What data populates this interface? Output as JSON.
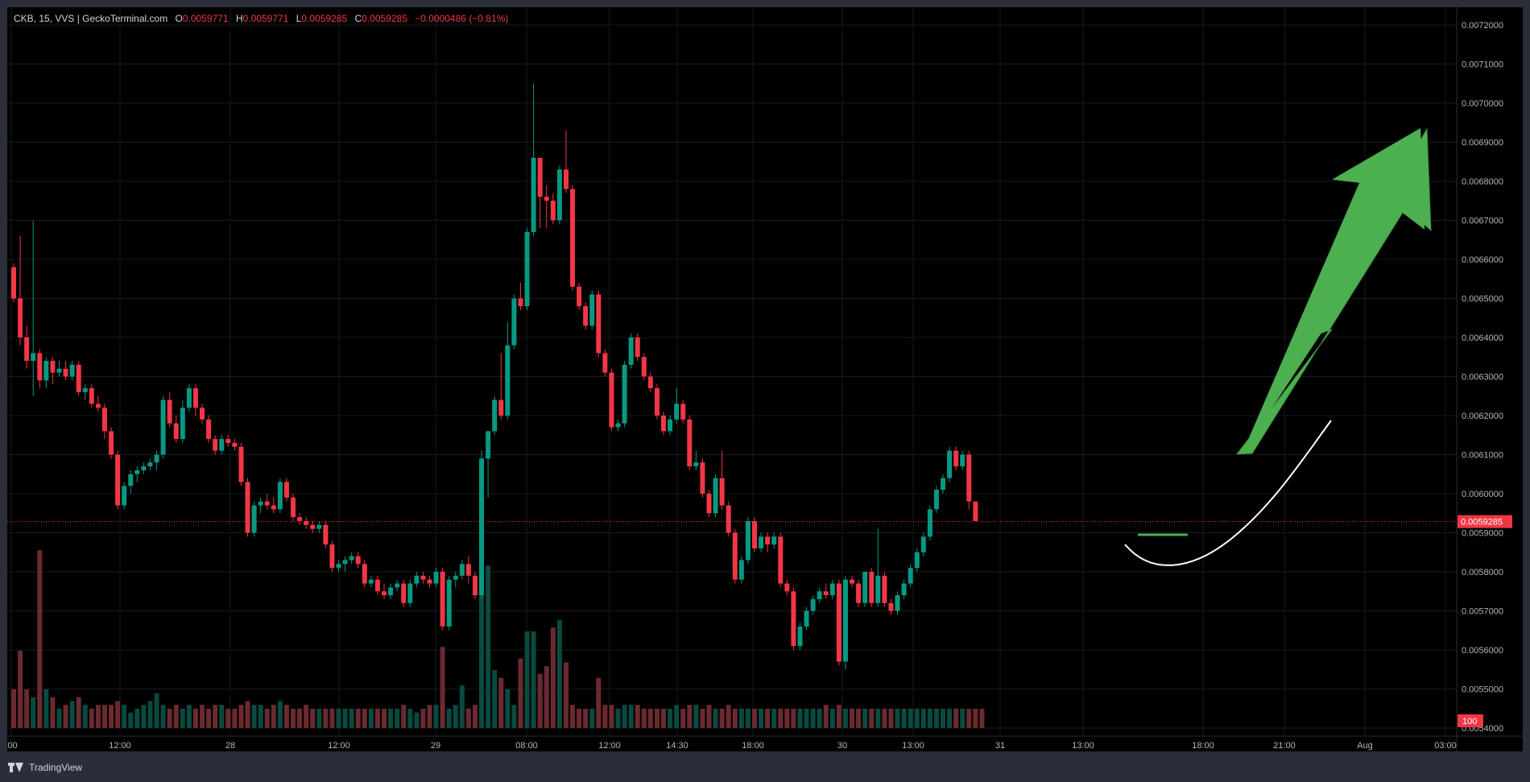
{
  "header": {
    "symbol": "CKB, 15, VVS | GeckoTerminal.com",
    "open_label": "O",
    "open": "0.0059771",
    "high_label": "H",
    "high": "0.0059771",
    "low_label": "L",
    "low": "0.0059285",
    "close_label": "C",
    "close": "0.0059285",
    "change": "−0.0000486 (−0.81%)"
  },
  "footer": {
    "brand": "TradingView"
  },
  "colors": {
    "up": "#089981",
    "down": "#f23645",
    "background": "#000000",
    "arrow": "#4caf50",
    "text": "#b2b5be"
  },
  "chart_data": {
    "type": "candlestick",
    "x_tick_labels": [
      ":00",
      "12:00",
      "28",
      "12:00",
      "29",
      "08:00",
      "12:00",
      "14:30",
      "18:00",
      "30",
      "13:00",
      "31",
      "13:00",
      "18:00",
      "21:00",
      "Aug",
      "03:00"
    ],
    "y_tick_labels": [
      "0.0072000",
      "0.0071000",
      "0.0070000",
      "0.0069000",
      "0.0068000",
      "0.0067000",
      "0.0066000",
      "0.0065000",
      "0.0064000",
      "0.0063000",
      "0.0062000",
      "0.0061000",
      "0.0060000",
      "0.0059000",
      "0.0058000",
      "0.0057000",
      "0.0056000",
      "0.0055000",
      "0.0054000"
    ],
    "ylim": [
      0.0054,
      0.0072
    ],
    "last_price": 0.0059285,
    "last_price_label": "0.0059285",
    "volume_badge": "100",
    "candles": [
      [
        0.00658,
        0.00659,
        0.00649,
        0.0065
      ],
      [
        0.0065,
        0.00666,
        0.00638,
        0.0064
      ],
      [
        0.0064,
        0.00643,
        0.00632,
        0.00634
      ],
      [
        0.00634,
        0.0067,
        0.00625,
        0.00636
      ],
      [
        0.00636,
        0.00637,
        0.00627,
        0.00629
      ],
      [
        0.00629,
        0.00635,
        0.00627,
        0.00634
      ],
      [
        0.00634,
        0.00635,
        0.00628,
        0.00631
      ],
      [
        0.00631,
        0.00634,
        0.0063,
        0.00632
      ],
      [
        0.00632,
        0.00634,
        0.00629,
        0.0063
      ],
      [
        0.0063,
        0.00634,
        0.00629,
        0.00633
      ],
      [
        0.00633,
        0.00634,
        0.00625,
        0.00626
      ],
      [
        0.00626,
        0.00628,
        0.00624,
        0.00627
      ],
      [
        0.00627,
        0.00628,
        0.00622,
        0.00623
      ],
      [
        0.00623,
        0.00625,
        0.00621,
        0.00622
      ],
      [
        0.00622,
        0.00623,
        0.00614,
        0.00616
      ],
      [
        0.00616,
        0.00617,
        0.00609,
        0.0061
      ],
      [
        0.0061,
        0.00611,
        0.00596,
        0.00597
      ],
      [
        0.00597,
        0.00603,
        0.00596,
        0.00602
      ],
      [
        0.00602,
        0.00606,
        0.006,
        0.00605
      ],
      [
        0.00605,
        0.00607,
        0.00603,
        0.00606
      ],
      [
        0.00606,
        0.00608,
        0.00605,
        0.00607
      ],
      [
        0.00607,
        0.00609,
        0.00606,
        0.00608
      ],
      [
        0.00608,
        0.00611,
        0.00606,
        0.0061
      ],
      [
        0.0061,
        0.00625,
        0.00609,
        0.00624
      ],
      [
        0.00624,
        0.00626,
        0.00617,
        0.00618
      ],
      [
        0.00618,
        0.0062,
        0.00613,
        0.00614
      ],
      [
        0.00614,
        0.00624,
        0.00613,
        0.00622
      ],
      [
        0.00622,
        0.00628,
        0.00621,
        0.00627
      ],
      [
        0.00627,
        0.00628,
        0.0062,
        0.00622
      ],
      [
        0.00622,
        0.00623,
        0.00618,
        0.00619
      ],
      [
        0.00619,
        0.0062,
        0.00613,
        0.00614
      ],
      [
        0.00614,
        0.00615,
        0.0061,
        0.00611
      ],
      [
        0.00611,
        0.00615,
        0.0061,
        0.00614
      ],
      [
        0.00614,
        0.00615,
        0.00612,
        0.00613
      ],
      [
        0.00613,
        0.00614,
        0.00611,
        0.00612
      ],
      [
        0.00612,
        0.00613,
        0.00602,
        0.00603
      ],
      [
        0.00603,
        0.00604,
        0.00589,
        0.0059
      ],
      [
        0.0059,
        0.00598,
        0.00589,
        0.00597
      ],
      [
        0.00597,
        0.00599,
        0.00595,
        0.00598
      ],
      [
        0.00598,
        0.006,
        0.00596,
        0.00597
      ],
      [
        0.00597,
        0.00599,
        0.00595,
        0.00596
      ],
      [
        0.00596,
        0.00604,
        0.00595,
        0.00603
      ],
      [
        0.00603,
        0.00604,
        0.00598,
        0.00599
      ],
      [
        0.00599,
        0.006,
        0.00593,
        0.00594
      ],
      [
        0.00594,
        0.00595,
        0.00592,
        0.00593
      ],
      [
        0.00593,
        0.00594,
        0.00591,
        0.00592
      ],
      [
        0.00592,
        0.00593,
        0.0059,
        0.00591
      ],
      [
        0.00591,
        0.00593,
        0.0059,
        0.00592
      ],
      [
        0.00592,
        0.00593,
        0.00586,
        0.00587
      ],
      [
        0.00587,
        0.00588,
        0.0058,
        0.00581
      ],
      [
        0.00581,
        0.00583,
        0.0058,
        0.00582
      ],
      [
        0.00582,
        0.00584,
        0.0058,
        0.00583
      ],
      [
        0.00583,
        0.00585,
        0.00582,
        0.00584
      ],
      [
        0.00584,
        0.00585,
        0.00581,
        0.00582
      ],
      [
        0.00582,
        0.00583,
        0.00576,
        0.00577
      ],
      [
        0.00577,
        0.00579,
        0.00576,
        0.00578
      ],
      [
        0.00578,
        0.00579,
        0.00574,
        0.00575
      ],
      [
        0.00575,
        0.00577,
        0.00573,
        0.00574
      ],
      [
        0.00574,
        0.00577,
        0.00573,
        0.00576
      ],
      [
        0.00576,
        0.00578,
        0.00575,
        0.00577
      ],
      [
        0.00577,
        0.00578,
        0.00571,
        0.00572
      ],
      [
        0.00572,
        0.00578,
        0.00571,
        0.00577
      ],
      [
        0.00577,
        0.0058,
        0.00576,
        0.00579
      ],
      [
        0.00579,
        0.0058,
        0.00577,
        0.00578
      ],
      [
        0.00578,
        0.00579,
        0.00576,
        0.00577
      ],
      [
        0.00577,
        0.00581,
        0.00576,
        0.0058
      ],
      [
        0.0058,
        0.00581,
        0.00565,
        0.00566
      ],
      [
        0.00566,
        0.00579,
        0.00565,
        0.00578
      ],
      [
        0.00578,
        0.0058,
        0.00576,
        0.00579
      ],
      [
        0.00579,
        0.00583,
        0.00578,
        0.00582
      ],
      [
        0.00582,
        0.00584,
        0.00577,
        0.00579
      ],
      [
        0.00579,
        0.0058,
        0.00573,
        0.00574
      ],
      [
        0.00574,
        0.00611,
        0.00573,
        0.00609
      ],
      [
        0.00609,
        0.00616,
        0.00599,
        0.00616
      ],
      [
        0.00616,
        0.00625,
        0.00615,
        0.00624
      ],
      [
        0.00624,
        0.00636,
        0.00619,
        0.0062
      ],
      [
        0.0062,
        0.00644,
        0.00619,
        0.00638
      ],
      [
        0.00638,
        0.00651,
        0.00637,
        0.0065
      ],
      [
        0.0065,
        0.00654,
        0.00647,
        0.00648
      ],
      [
        0.00648,
        0.00668,
        0.00647,
        0.00667
      ],
      [
        0.00667,
        0.00705,
        0.00666,
        0.00686
      ],
      [
        0.00686,
        0.00686,
        0.00668,
        0.00676
      ],
      [
        0.00676,
        0.00679,
        0.00668,
        0.00675
      ],
      [
        0.00675,
        0.00677,
        0.00669,
        0.0067
      ],
      [
        0.0067,
        0.00684,
        0.00669,
        0.00683
      ],
      [
        0.00683,
        0.00693,
        0.00677,
        0.00678
      ],
      [
        0.00678,
        0.00679,
        0.00652,
        0.00653
      ],
      [
        0.00653,
        0.00654,
        0.00647,
        0.00648
      ],
      [
        0.00648,
        0.00649,
        0.00642,
        0.00643
      ],
      [
        0.00643,
        0.00652,
        0.00642,
        0.00651
      ],
      [
        0.00651,
        0.00652,
        0.00635,
        0.00636
      ],
      [
        0.00636,
        0.00637,
        0.0063,
        0.00631
      ],
      [
        0.00631,
        0.00632,
        0.00616,
        0.00617
      ],
      [
        0.00617,
        0.00619,
        0.00616,
        0.00618
      ],
      [
        0.00618,
        0.00634,
        0.00617,
        0.00633
      ],
      [
        0.00633,
        0.00641,
        0.00632,
        0.0064
      ],
      [
        0.0064,
        0.00641,
        0.00634,
        0.00635
      ],
      [
        0.00635,
        0.00636,
        0.00629,
        0.0063
      ],
      [
        0.0063,
        0.00631,
        0.00626,
        0.00627
      ],
      [
        0.00627,
        0.00628,
        0.00619,
        0.0062
      ],
      [
        0.0062,
        0.00621,
        0.00615,
        0.00616
      ],
      [
        0.00616,
        0.0062,
        0.00615,
        0.00619
      ],
      [
        0.00619,
        0.00627,
        0.00618,
        0.00623
      ],
      [
        0.00623,
        0.00624,
        0.00618,
        0.00619
      ],
      [
        0.00619,
        0.0062,
        0.00606,
        0.00607
      ],
      [
        0.00607,
        0.00611,
        0.00606,
        0.00608
      ],
      [
        0.00608,
        0.00609,
        0.00599,
        0.006
      ],
      [
        0.006,
        0.00601,
        0.00594,
        0.00595
      ],
      [
        0.00595,
        0.00605,
        0.00594,
        0.00604
      ],
      [
        0.00604,
        0.00611,
        0.00596,
        0.00597
      ],
      [
        0.00597,
        0.00598,
        0.00589,
        0.0059
      ],
      [
        0.0059,
        0.00591,
        0.00577,
        0.00578
      ],
      [
        0.00578,
        0.00584,
        0.00577,
        0.00583
      ],
      [
        0.00583,
        0.00594,
        0.00582,
        0.00593
      ],
      [
        0.00593,
        0.00594,
        0.00585,
        0.00586
      ],
      [
        0.00586,
        0.0059,
        0.00585,
        0.00589
      ],
      [
        0.00589,
        0.0059,
        0.00585,
        0.00587
      ],
      [
        0.00587,
        0.0059,
        0.00586,
        0.00589
      ],
      [
        0.00589,
        0.0059,
        0.00576,
        0.00577
      ],
      [
        0.00577,
        0.00578,
        0.00574,
        0.00575
      ],
      [
        0.00575,
        0.00576,
        0.0056,
        0.00561
      ],
      [
        0.00561,
        0.00567,
        0.0056,
        0.00566
      ],
      [
        0.00566,
        0.00571,
        0.00565,
        0.0057
      ],
      [
        0.0057,
        0.00574,
        0.00569,
        0.00573
      ],
      [
        0.00573,
        0.00576,
        0.00572,
        0.00575
      ],
      [
        0.00575,
        0.00577,
        0.00573,
        0.00574
      ],
      [
        0.00574,
        0.00578,
        0.00573,
        0.00577
      ],
      [
        0.00577,
        0.00578,
        0.00556,
        0.00557
      ],
      [
        0.00557,
        0.00579,
        0.00555,
        0.00578
      ],
      [
        0.00578,
        0.00579,
        0.00576,
        0.00577
      ],
      [
        0.00577,
        0.00578,
        0.00571,
        0.00572
      ],
      [
        0.00572,
        0.0058,
        0.00571,
        0.0058
      ],
      [
        0.0058,
        0.00581,
        0.00571,
        0.00572
      ],
      [
        0.00572,
        0.00591,
        0.00571,
        0.00579
      ],
      [
        0.00579,
        0.0058,
        0.00571,
        0.00572
      ],
      [
        0.00572,
        0.00573,
        0.00569,
        0.0057
      ],
      [
        0.0057,
        0.00575,
        0.00569,
        0.00574
      ],
      [
        0.00574,
        0.00578,
        0.00573,
        0.00577
      ],
      [
        0.00577,
        0.00582,
        0.00576,
        0.00581
      ],
      [
        0.00581,
        0.00586,
        0.0058,
        0.00585
      ],
      [
        0.00585,
        0.0059,
        0.00584,
        0.00589
      ],
      [
        0.00589,
        0.00597,
        0.00588,
        0.00596
      ],
      [
        0.00596,
        0.00602,
        0.00595,
        0.00601
      ],
      [
        0.00601,
        0.00605,
        0.006,
        0.00604
      ],
      [
        0.00604,
        0.00612,
        0.00603,
        0.00611
      ],
      [
        0.00611,
        0.00612,
        0.00606,
        0.00607
      ],
      [
        0.00607,
        0.00611,
        0.00606,
        0.0061
      ],
      [
        0.0061,
        0.00611,
        0.00596,
        0.00598
      ],
      [
        0.00598,
        0.00598,
        0.00593,
        0.00593
      ]
    ],
    "volumes": [
      1,
      2,
      1,
      0.8,
      4.6,
      1,
      0.8,
      0.5,
      0.6,
      0.7,
      0.8,
      0.6,
      0.5,
      0.6,
      0.6,
      0.6,
      0.7,
      0.6,
      0.4,
      0.5,
      0.6,
      0.7,
      0.9,
      0.6,
      0.5,
      0.6,
      0.5,
      0.6,
      0.5,
      0.6,
      0.5,
      0.6,
      0.6,
      0.5,
      0.5,
      0.6,
      0.7,
      0.6,
      0.6,
      0.5,
      0.6,
      0.7,
      0.6,
      0.5,
      0.5,
      0.6,
      0.5,
      0.5,
      0.5,
      0.5,
      0.5,
      0.5,
      0.5,
      0.5,
      0.5,
      0.5,
      0.5,
      0.5,
      0.5,
      0.5,
      0.6,
      0.5,
      0.4,
      0.5,
      0.6,
      0.6,
      2.1,
      0.5,
      0.6,
      1.1,
      0.5,
      0.6,
      4.1,
      4.2,
      1.5,
      1.3,
      1,
      0.6,
      1.8,
      2.5,
      2.5,
      1.4,
      1.6,
      2.6,
      2.8,
      1.7,
      0.6,
      0.5,
      0.5,
      0.5,
      1.3,
      0.6,
      0.6,
      0.5,
      0.6,
      0.6,
      0.6,
      0.5,
      0.5,
      0.5,
      0.5,
      0.5,
      0.6,
      0.5,
      0.6,
      0.6,
      0.5,
      0.6,
      0.5,
      0.5,
      0.6,
      0.5,
      0.5,
      0.5,
      0.5,
      0.5,
      0.5,
      0.5,
      0.5,
      0.5,
      0.5,
      0.5,
      0.5,
      0.5,
      0.5,
      0.6,
      0.5,
      0.6,
      0.5,
      0.5,
      0.5,
      0.5,
      0.5,
      0.5,
      0.5,
      0.5,
      0.5,
      0.5,
      0.5,
      0.5,
      0.5,
      0.5,
      0.5,
      0.5,
      0.5,
      0.5,
      0.5,
      0.5,
      0.5,
      0.5
    ]
  }
}
